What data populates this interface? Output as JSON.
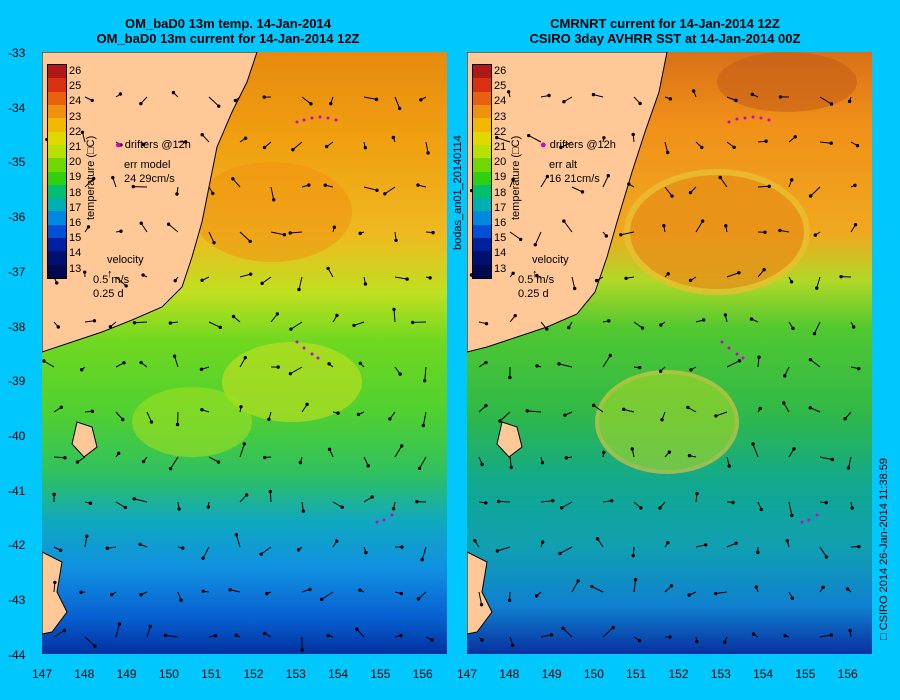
{
  "left_panel": {
    "title_line1": "OM_baD0 13m temp. 14-Jan-2014",
    "title_line2": "OM_baD0 13m current for 14-Jan-2014 12Z",
    "legend_drifters": "drifters @12h",
    "legend_err_line1": "err model",
    "legend_err_line2": "24 29cm/s",
    "velocity_label": "velocity",
    "velocity_scale1": "0.5 m/s",
    "velocity_scale2": "0.25 d",
    "colorbar_title": "temperature (□C)"
  },
  "right_panel": {
    "title_line1": "CMRNRT current for 14-Jan-2014 12Z",
    "title_line2": "CSIRO 3day AVHRR SST at 14-Jan-2014 00Z",
    "legend_drifters": "drifters @12h",
    "legend_err_line1": "err alt",
    "legend_err_line2": "16 21cm/s",
    "velocity_label": "velocity",
    "velocity_scale1": "0.5 m/s",
    "velocity_scale2": "0.25 d",
    "colorbar_title": "temperature (□C)"
  },
  "side_label_left": "bodas_an01_20140114",
  "side_label_right": "□ CSIRO 2014   26-Jan-2014 11:38:59",
  "y_ticks": [
    "-33",
    "-34",
    "-35",
    "-36",
    "-37",
    "-38",
    "-39",
    "-40",
    "-41",
    "-42",
    "-43",
    "-44"
  ],
  "x_ticks": [
    "147",
    "148",
    "149",
    "150",
    "151",
    "152",
    "153",
    "154",
    "155",
    "156"
  ],
  "colorbar_labels": [
    "26",
    "25",
    "24",
    "23",
    "22",
    "21",
    "20",
    "19",
    "18",
    "17",
    "16",
    "15",
    "14",
    "13"
  ],
  "colorbar_colors": [
    "#b01818",
    "#d83010",
    "#e86010",
    "#f09010",
    "#f0b800",
    "#e0d800",
    "#b8e000",
    "#70d800",
    "#30d010",
    "#00c070",
    "#00b0b0",
    "#0088e0",
    "#0050d8",
    "#0020a0",
    "#001070",
    "#000850"
  ],
  "colors": {
    "background": "#00c8ff",
    "land": "#ffc896",
    "drifter": "#d000d0"
  }
}
